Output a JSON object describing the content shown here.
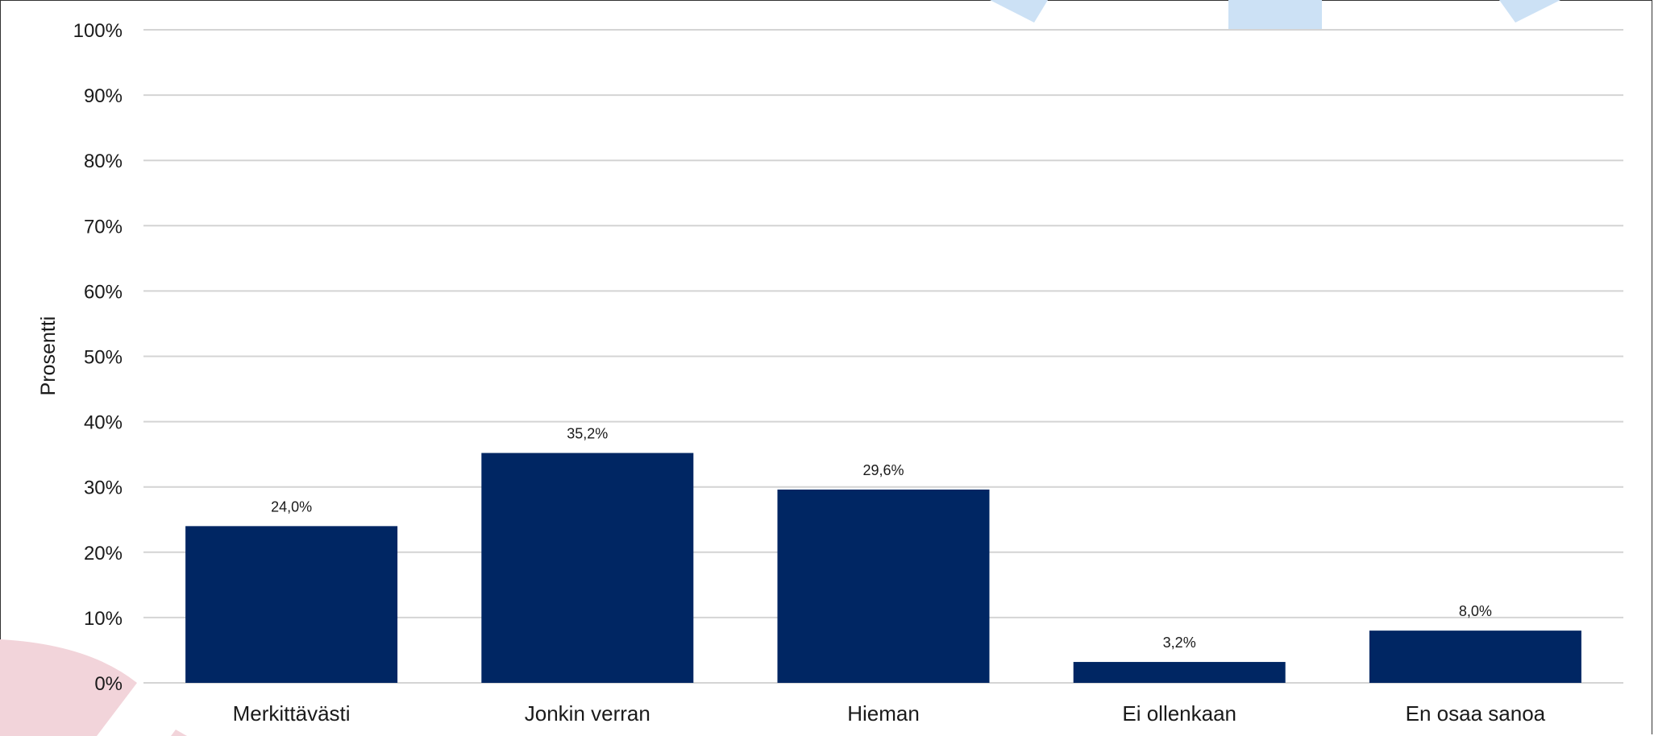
{
  "chart_data": {
    "type": "bar",
    "categories": [
      "Merkittävästi",
      "Jonkin verran",
      "Hieman",
      "Ei ollenkaan",
      "En osaa sanoa"
    ],
    "values": [
      24.0,
      35.2,
      29.6,
      3.2,
      8.0
    ],
    "data_labels": [
      "24,0%",
      "35,2%",
      "29,6%",
      "3,2%",
      "8,0%"
    ],
    "title": "",
    "xlabel": "",
    "ylabel": "Prosentti",
    "ylim": [
      0,
      100
    ],
    "yticks": [
      0,
      10,
      20,
      30,
      40,
      50,
      60,
      70,
      80,
      90,
      100
    ],
    "ytick_labels": [
      "0%",
      "10%",
      "20%",
      "30%",
      "40%",
      "50%",
      "60%",
      "70%",
      "80%",
      "90%",
      "100%"
    ],
    "grid": true,
    "bar_color": "#002663",
    "grid_color": "#d4d4d4",
    "legend": "none"
  },
  "decor": {
    "watermark_blue": "#cce1f5",
    "watermark_pink": "#f2d4da"
  }
}
